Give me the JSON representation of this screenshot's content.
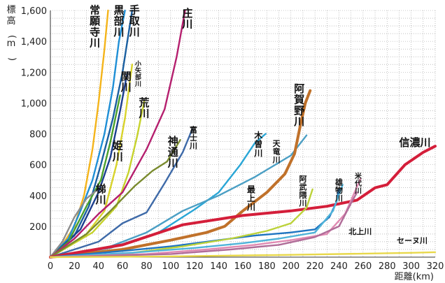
{
  "chart_data": {
    "type": "line",
    "xlabel": "距離(km)",
    "ylabel": "標高(m)",
    "xlim": [
      0,
      320
    ],
    "ylim": [
      0,
      1600
    ],
    "x_ticks": [
      "0",
      "20",
      "40",
      "60",
      "80",
      "100",
      "120",
      "140",
      "160",
      "180",
      "200",
      "220",
      "240",
      "260",
      "280",
      "300",
      "320"
    ],
    "y_ticks": [
      "200",
      "400",
      "600",
      "800",
      "1,000",
      "1,200",
      "1,400",
      "1,600"
    ],
    "grid": true,
    "series": [
      {
        "name": "常願寺川",
        "color": "#f4b41a",
        "label_at": [
          37,
          1580
        ],
        "label_size": 15,
        "label_vertical": true,
        "points": [
          [
            0,
            0
          ],
          [
            10,
            80
          ],
          [
            20,
            200
          ],
          [
            28,
            400
          ],
          [
            35,
            700
          ],
          [
            40,
            1000
          ],
          [
            45,
            1350
          ],
          [
            48,
            1600
          ]
        ]
      },
      {
        "name": "黒部川",
        "color": "#1f8fd6",
        "label_at": [
          57,
          1580
        ],
        "label_size": 15,
        "label_vertical": true,
        "points": [
          [
            0,
            0
          ],
          [
            15,
            120
          ],
          [
            25,
            300
          ],
          [
            35,
            500
          ],
          [
            45,
            800
          ],
          [
            52,
            1100
          ],
          [
            57,
            1400
          ],
          [
            62,
            1600
          ]
        ]
      },
      {
        "name": "手取川",
        "color": "#1a5fa0",
        "label_at": [
          70,
          1580
        ],
        "label_size": 15,
        "label_vertical": true,
        "points": [
          [
            0,
            0
          ],
          [
            20,
            140
          ],
          [
            32,
            330
          ],
          [
            42,
            600
          ],
          [
            52,
            900
          ],
          [
            60,
            1200
          ],
          [
            66,
            1500
          ],
          [
            68,
            1600
          ]
        ]
      },
      {
        "name": "小矢部川",
        "color": "#d8d32b",
        "label_at": [
          73,
          1240
        ],
        "label_size": 9,
        "label_vertical": true,
        "points": [
          [
            0,
            0
          ],
          [
            30,
            150
          ],
          [
            45,
            300
          ],
          [
            55,
            600
          ],
          [
            62,
            900
          ],
          [
            68,
            1250
          ]
        ]
      },
      {
        "name": "関川",
        "color": "#1c3f8f",
        "label_at": [
          63,
          1150
        ],
        "label_size": 15,
        "label_vertical": true,
        "points": [
          [
            0,
            0
          ],
          [
            25,
            180
          ],
          [
            40,
            420
          ],
          [
            50,
            650
          ],
          [
            58,
            950
          ],
          [
            64,
            1200
          ]
        ]
      },
      {
        "name": "荒川",
        "color": "#c6d22c",
        "label_at": [
          78,
          980
        ],
        "label_size": 15,
        "label_vertical": true,
        "points": [
          [
            0,
            0
          ],
          [
            35,
            160
          ],
          [
            55,
            330
          ],
          [
            65,
            550
          ],
          [
            72,
            780
          ],
          [
            78,
            1010
          ]
        ]
      },
      {
        "name": "姫川",
        "color": "#4aa02c",
        "label_at": [
          56,
          700
        ],
        "label_size": 15,
        "label_vertical": true,
        "points": [
          [
            0,
            0
          ],
          [
            15,
            100
          ],
          [
            30,
            330
          ],
          [
            42,
            500
          ],
          [
            50,
            750
          ],
          [
            58,
            1050
          ]
        ]
      },
      {
        "name": "梯川",
        "color": "#8c8c8c",
        "label_at": [
          42,
          420
        ],
        "label_size": 15,
        "label_vertical": true,
        "points": [
          [
            0,
            0
          ],
          [
            10,
            100
          ],
          [
            20,
            260
          ],
          [
            30,
            380
          ],
          [
            38,
            430
          ]
        ]
      },
      {
        "name": "庄川",
        "color": "#b51f6e",
        "label_at": [
          114,
          1560
        ],
        "label_size": 15,
        "label_vertical": true,
        "points": [
          [
            0,
            0
          ],
          [
            20,
            120
          ],
          [
            40,
            280
          ],
          [
            60,
            420
          ],
          [
            80,
            700
          ],
          [
            95,
            960
          ],
          [
            105,
            1300
          ],
          [
            112,
            1600
          ]
        ]
      },
      {
        "name": "神通川",
        "color": "#7a8b2e",
        "label_at": [
          102,
          730
        ],
        "label_size": 15,
        "label_vertical": true,
        "points": [
          [
            0,
            0
          ],
          [
            30,
            150
          ],
          [
            50,
            300
          ],
          [
            70,
            460
          ],
          [
            85,
            560
          ],
          [
            97,
            620
          ],
          [
            108,
            760
          ]
        ]
      },
      {
        "name": "富士川",
        "color": "#3e6aa8",
        "label_at": [
          119,
          810
        ],
        "label_size": 11,
        "label_vertical": true,
        "points": [
          [
            0,
            0
          ],
          [
            40,
            100
          ],
          [
            60,
            220
          ],
          [
            80,
            290
          ],
          [
            95,
            480
          ],
          [
            110,
            680
          ],
          [
            118,
            830
          ]
        ]
      },
      {
        "name": "木曽川",
        "color": "#29a6d6",
        "label_at": [
          173,
          770
        ],
        "label_size": 12,
        "label_vertical": true,
        "points": [
          [
            0,
            0
          ],
          [
            50,
            60
          ],
          [
            90,
            160
          ],
          [
            120,
            310
          ],
          [
            140,
            420
          ],
          [
            158,
            600
          ],
          [
            170,
            740
          ],
          [
            179,
            800
          ]
        ]
      },
      {
        "name": "天竜川",
        "color": "#4b9fc4",
        "label_at": [
          188,
          720
        ],
        "label_size": 11,
        "label_vertical": true,
        "points": [
          [
            0,
            0
          ],
          [
            50,
            70
          ],
          [
            80,
            160
          ],
          [
            110,
            300
          ],
          [
            140,
            400
          ],
          [
            170,
            520
          ],
          [
            200,
            660
          ],
          [
            213,
            790
          ]
        ]
      },
      {
        "name": "阿賀野川",
        "color": "#c0712a",
        "label_at": [
          207,
          1070
        ],
        "label_size": 15,
        "label_vertical": true,
        "points": [
          [
            0,
            0
          ],
          [
            60,
            50
          ],
          [
            100,
            110
          ],
          [
            130,
            160
          ],
          [
            145,
            200
          ],
          [
            160,
            300
          ],
          [
            180,
            420
          ],
          [
            195,
            540
          ],
          [
            203,
            670
          ],
          [
            208,
            860
          ],
          [
            212,
            1000
          ],
          [
            216,
            1080
          ]
        ]
      },
      {
        "name": "信濃川",
        "color": "#d41e3a",
        "label_at": [
          290,
          720
        ],
        "label_size": 15,
        "label_vertical": false,
        "points": [
          [
            0,
            0
          ],
          [
            60,
            80
          ],
          [
            110,
            210
          ],
          [
            160,
            270
          ],
          [
            200,
            300
          ],
          [
            230,
            330
          ],
          [
            255,
            370
          ],
          [
            270,
            450
          ],
          [
            280,
            470
          ],
          [
            295,
            600
          ],
          [
            310,
            680
          ],
          [
            320,
            720
          ]
        ]
      },
      {
        "name": "最上川",
        "color": "#1e74c1",
        "label_at": [
          167,
          420
        ],
        "label_size": 12,
        "label_vertical": true,
        "points": [
          [
            0,
            0
          ],
          [
            60,
            40
          ],
          [
            100,
            70
          ],
          [
            140,
            110
          ],
          [
            170,
            140
          ],
          [
            200,
            160
          ],
          [
            220,
            180
          ],
          [
            232,
            260
          ],
          [
            238,
            360
          ],
          [
            240,
            440
          ]
        ]
      },
      {
        "name": "阿武隈川",
        "color": "#bcd23a",
        "label_at": [
          210,
          490
        ],
        "label_size": 11,
        "label_vertical": true,
        "points": [
          [
            0,
            0
          ],
          [
            60,
            20
          ],
          [
            110,
            70
          ],
          [
            150,
            120
          ],
          [
            180,
            170
          ],
          [
            200,
            220
          ],
          [
            213,
            320
          ],
          [
            218,
            440
          ]
        ]
      },
      {
        "name": "雄物川",
        "color": "#4fb3d9",
        "label_at": [
          240,
          470
        ],
        "label_size": 11,
        "label_vertical": true,
        "points": [
          [
            0,
            0
          ],
          [
            70,
            30
          ],
          [
            120,
            60
          ],
          [
            160,
            90
          ],
          [
            190,
            120
          ],
          [
            220,
            160
          ],
          [
            235,
            300
          ],
          [
            243,
            470
          ]
        ]
      },
      {
        "name": "米代川",
        "color": "#e08ab2",
        "label_at": [
          256,
          510
        ],
        "label_size": 10,
        "label_vertical": true,
        "points": [
          [
            0,
            0
          ],
          [
            80,
            20
          ],
          [
            130,
            50
          ],
          [
            170,
            80
          ],
          [
            200,
            110
          ],
          [
            230,
            150
          ],
          [
            245,
            280
          ],
          [
            258,
            510
          ]
        ]
      },
      {
        "name": "北上川",
        "color": "#b06c98",
        "label_at": [
          248,
          150
        ],
        "label_size": 11,
        "label_vertical": false,
        "points": [
          [
            0,
            0
          ],
          [
            100,
            20
          ],
          [
            150,
            50
          ],
          [
            190,
            80
          ],
          [
            220,
            130
          ],
          [
            240,
            200
          ],
          [
            250,
            350
          ],
          [
            255,
            420
          ]
        ]
      },
      {
        "name": "セーヌ川",
        "color": "#e8d84a",
        "label_at": [
          288,
          90
        ],
        "label_size": 11,
        "label_vertical": false,
        "points": [
          [
            0,
            0
          ],
          [
            100,
            5
          ],
          [
            200,
            15
          ],
          [
            300,
            28
          ],
          [
            320,
            32
          ]
        ]
      }
    ]
  }
}
